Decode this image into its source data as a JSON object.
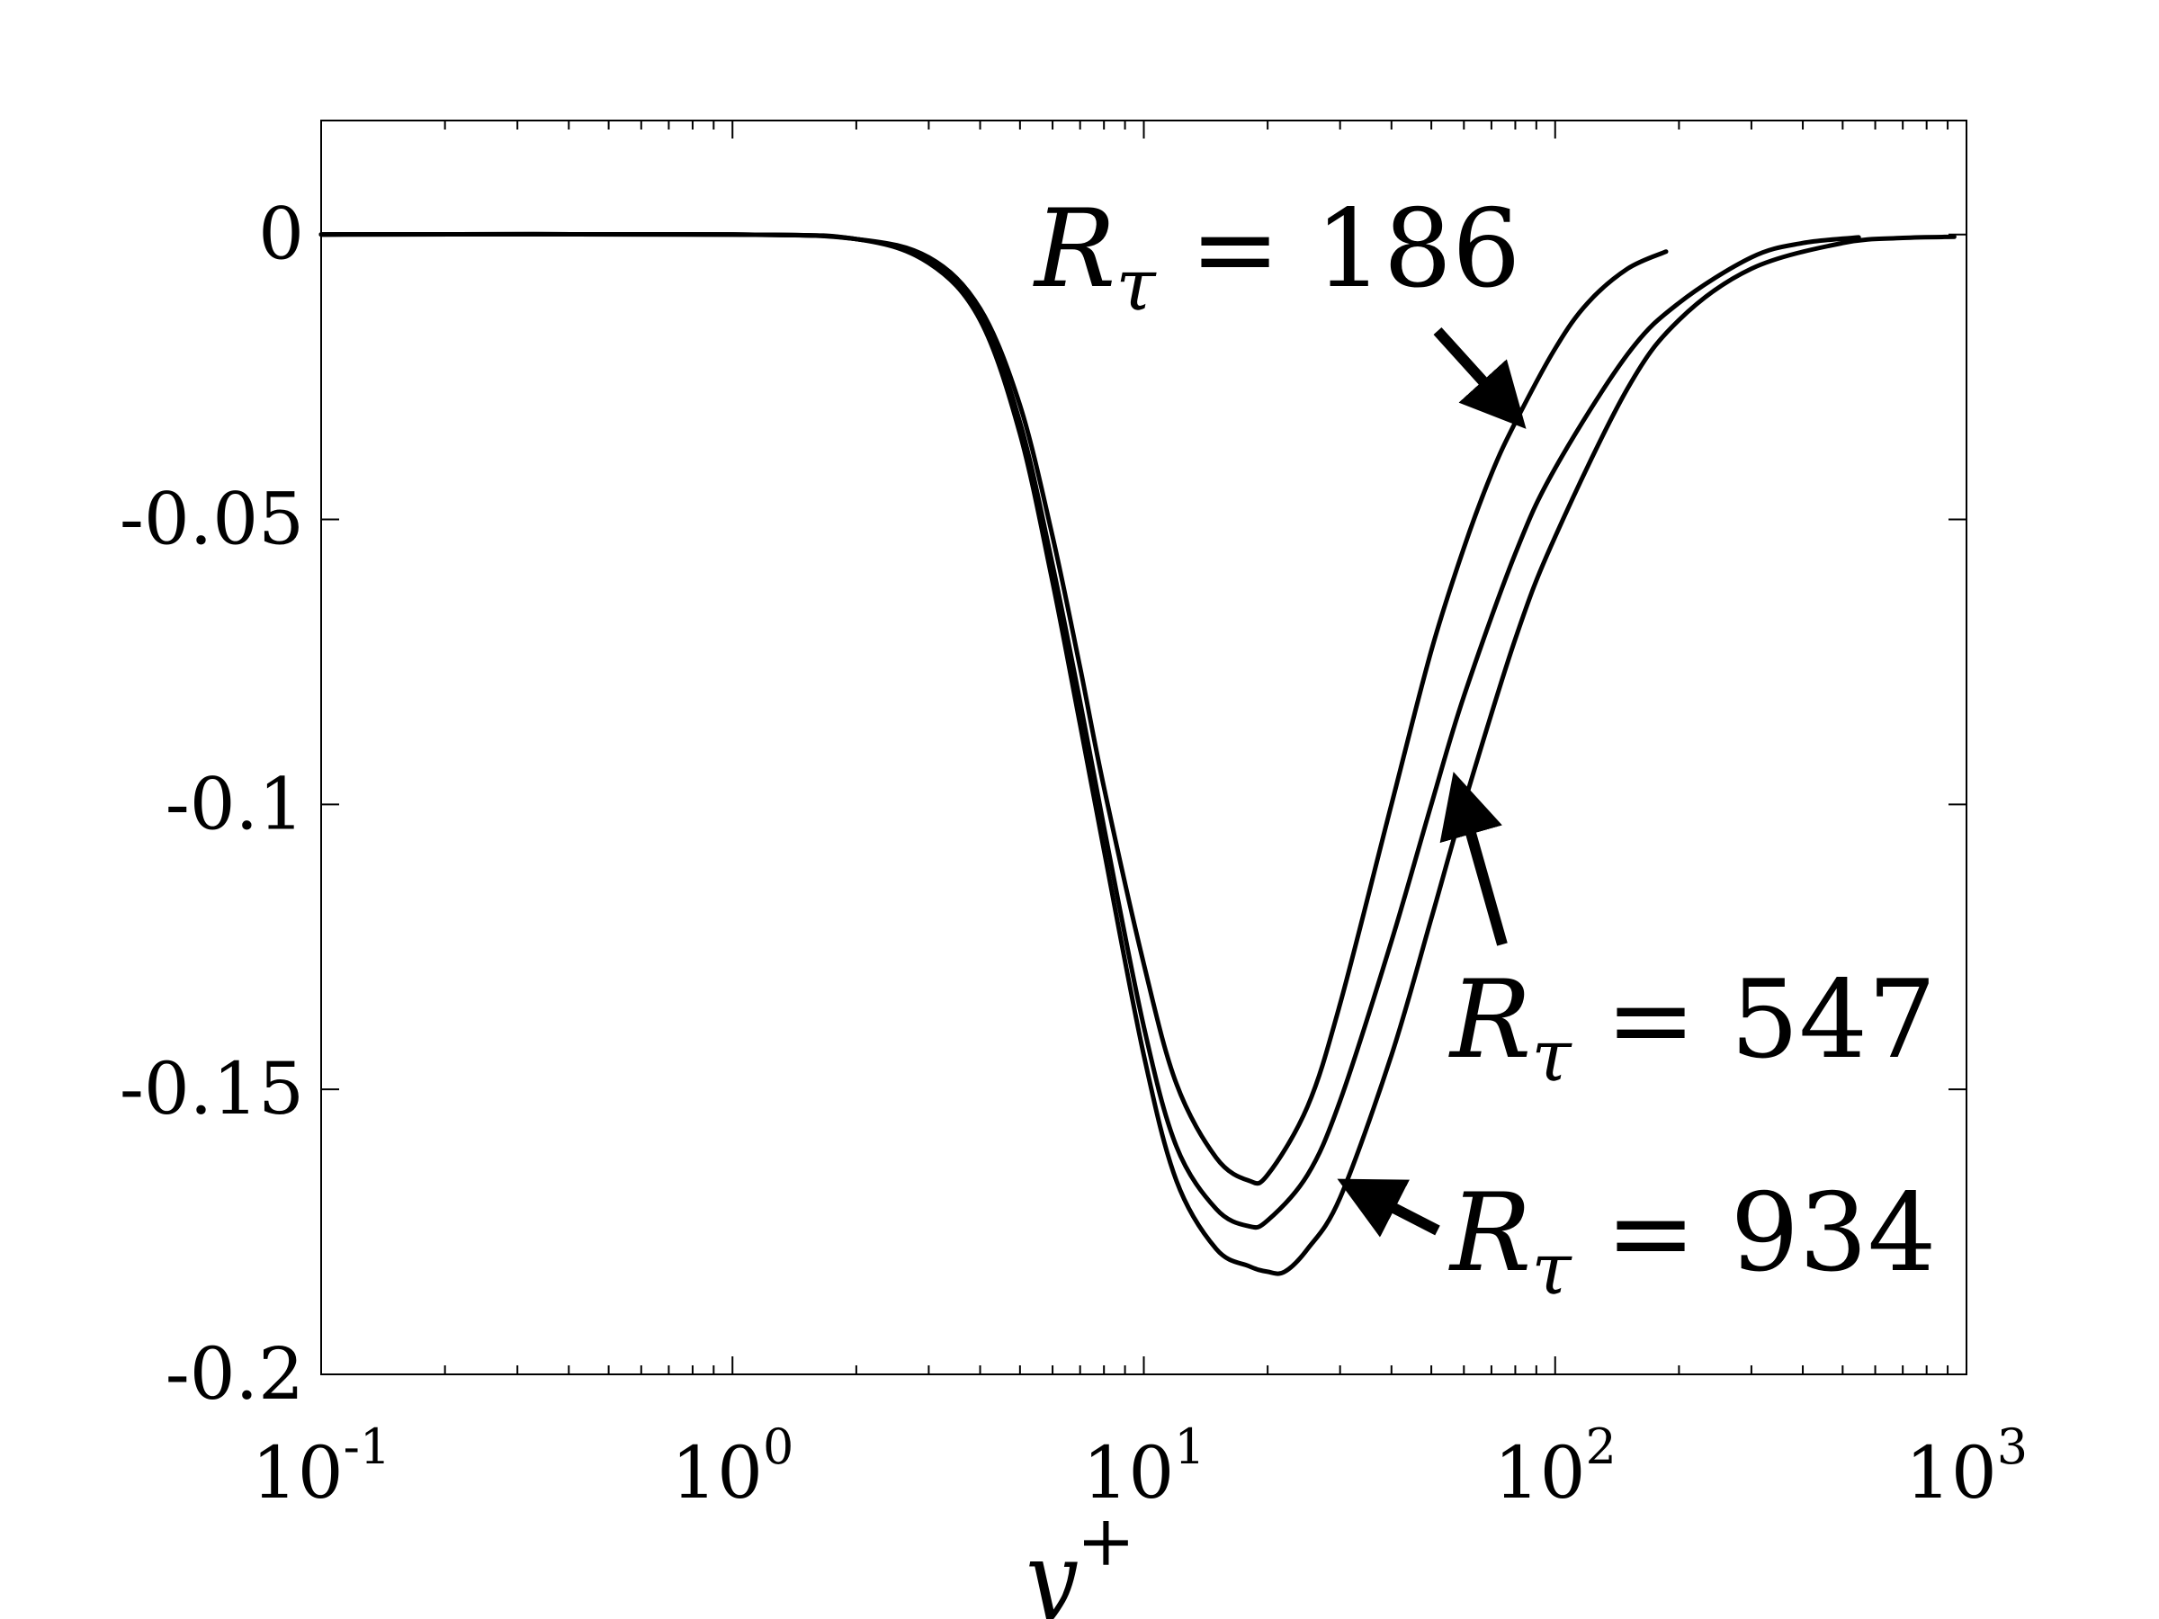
{
  "chart_data": {
    "type": "line",
    "title": "",
    "xlabel": "y",
    "xlabel_superscript": "+",
    "ylabel": "",
    "xscale": "log",
    "xlim": [
      0.1,
      1000
    ],
    "ylim": [
      -0.2,
      0.02
    ],
    "grid": false,
    "line_color": "#000000",
    "x_ticks": [
      {
        "base": "10",
        "exp": "-1",
        "value": 0.1
      },
      {
        "base": "10",
        "exp": "0",
        "value": 1
      },
      {
        "base": "10",
        "exp": "1",
        "value": 10
      },
      {
        "base": "10",
        "exp": "2",
        "value": 100
      },
      {
        "base": "10",
        "exp": "3",
        "value": 1000
      }
    ],
    "y_ticks": [
      {
        "label": "0",
        "value": 0
      },
      {
        "label": "-0.05",
        "value": -0.05
      },
      {
        "label": "-0.1",
        "value": -0.1
      },
      {
        "label": "-0.15",
        "value": -0.15
      },
      {
        "label": "-0.2",
        "value": -0.2
      }
    ],
    "series": [
      {
        "name": "R_τ = 186",
        "x": [
          0.1,
          1,
          2,
          3,
          4,
          5,
          6,
          7,
          8,
          10,
          12,
          15,
          18,
          20,
          25,
          30,
          40,
          50,
          60,
          70,
          80,
          100,
          120,
          150,
          186
        ],
        "y": [
          0,
          0,
          -0.0008,
          -0.004,
          -0.013,
          -0.03,
          -0.053,
          -0.076,
          -0.097,
          -0.128,
          -0.149,
          -0.162,
          -0.166,
          -0.165,
          -0.153,
          -0.135,
          -0.1,
          -0.073,
          -0.055,
          -0.042,
          -0.033,
          -0.02,
          -0.012,
          -0.006,
          -0.003
        ]
      },
      {
        "name": "R_τ = 547",
        "x": [
          0.1,
          1,
          2,
          3,
          4,
          5,
          6,
          7,
          8,
          10,
          12,
          15,
          18,
          20,
          25,
          30,
          40,
          50,
          60,
          80,
          100,
          150,
          200,
          300,
          400,
          547
        ],
        "y": [
          0,
          0,
          -0.0008,
          -0.0045,
          -0.014,
          -0.033,
          -0.058,
          -0.082,
          -0.104,
          -0.139,
          -0.16,
          -0.171,
          -0.174,
          -0.173,
          -0.165,
          -0.152,
          -0.124,
          -0.1,
          -0.081,
          -0.056,
          -0.041,
          -0.021,
          -0.012,
          -0.004,
          -0.0015,
          -0.0005
        ]
      },
      {
        "name": "R_τ = 934",
        "x": [
          0.1,
          1,
          2,
          3,
          4,
          5,
          6,
          7,
          8,
          10,
          12,
          15,
          18,
          20,
          22,
          25,
          30,
          40,
          50,
          60,
          80,
          100,
          150,
          200,
          300,
          500,
          700,
          934
        ],
        "y": [
          0,
          0,
          -0.0008,
          -0.005,
          -0.015,
          -0.035,
          -0.061,
          -0.086,
          -0.108,
          -0.144,
          -0.166,
          -0.178,
          -0.181,
          -0.182,
          -0.182,
          -0.178,
          -0.169,
          -0.144,
          -0.12,
          -0.1,
          -0.071,
          -0.053,
          -0.027,
          -0.015,
          -0.006,
          -0.0015,
          -0.0006,
          -0.0004
        ]
      }
    ],
    "annotations": [
      {
        "label": "R",
        "sub": "τ",
        "rest": " = 186",
        "series": "R_τ = 186",
        "arrow_to": {
          "x": 80,
          "y": -0.032
        }
      },
      {
        "label": "R",
        "sub": "τ",
        "rest": " = 547",
        "series": "R_τ = 547",
        "arrow_to": {
          "x": 58,
          "y": -0.097
        }
      },
      {
        "label": "R",
        "sub": "τ",
        "rest": " = 934",
        "series": "R_τ = 934",
        "arrow_to": {
          "x": 32,
          "y": -0.167
        }
      }
    ]
  }
}
